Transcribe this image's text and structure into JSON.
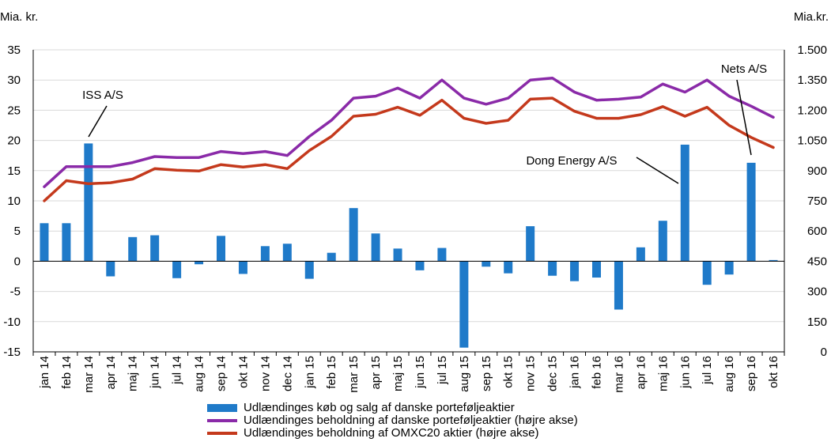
{
  "chart_data": {
    "type": "bar+line",
    "left_unit": "Mia. kr.",
    "right_unit": "Mia.kr.",
    "categories": [
      "jan 14",
      "feb 14",
      "mar 14",
      "apr 14",
      "maj 14",
      "jun 14",
      "jul 14",
      "aug 14",
      "sep 14",
      "okt 14",
      "nov 14",
      "dec 14",
      "jan 15",
      "feb 15",
      "mar 15",
      "apr 15",
      "maj 15",
      "jun 15",
      "jul 15",
      "aug 15",
      "sep 15",
      "okt 15",
      "nov 15",
      "dec 15",
      "jan 16",
      "feb 16",
      "mar 16",
      "apr 16",
      "maj 16",
      "jun 16",
      "jul 16",
      "aug 16",
      "sep 16",
      "okt 16"
    ],
    "left_axis": {
      "ylim": [
        -15,
        35
      ],
      "ticks": [
        -15,
        -10,
        -5,
        0,
        5,
        10,
        15,
        20,
        25,
        30,
        35
      ],
      "tick_labels": [
        "-15",
        "-10",
        "-5",
        "0",
        "5",
        "10",
        "15",
        "20",
        "25",
        "30",
        "35"
      ]
    },
    "right_axis": {
      "ylim": [
        0,
        1500
      ],
      "ticks": [
        0,
        150,
        300,
        450,
        600,
        750,
        900,
        1050,
        1200,
        1350,
        1500
      ],
      "tick_labels": [
        "0",
        "150",
        "300",
        "450",
        "600",
        "750",
        "900",
        "1.050",
        "1.200",
        "1.350",
        "1.500"
      ]
    },
    "series": [
      {
        "name": "Udlændinges køb og salg af danske porteføljeaktier",
        "kind": "bar",
        "axis": "left",
        "color": "#1f7ac9",
        "values": [
          6.3,
          6.3,
          19.5,
          -2.5,
          4.0,
          4.3,
          -2.8,
          -0.5,
          4.2,
          -2.1,
          2.5,
          2.9,
          -2.9,
          1.4,
          8.8,
          4.6,
          2.1,
          -1.5,
          2.2,
          -14.3,
          -0.9,
          -2.0,
          5.8,
          -2.4,
          -3.3,
          -2.7,
          -8.0,
          2.3,
          6.7,
          19.3,
          -3.9,
          -2.2,
          16.3,
          0.2
        ]
      },
      {
        "name": "Udlændinges beholdning af danske porteføljeaktier (højre akse)",
        "kind": "line",
        "axis": "right",
        "color": "#8a2aa8",
        "values": [
          820,
          920,
          920,
          920,
          940,
          970,
          965,
          965,
          995,
          985,
          995,
          975,
          1070,
          1150,
          1260,
          1270,
          1310,
          1260,
          1350,
          1260,
          1230,
          1260,
          1350,
          1360,
          1290,
          1250,
          1255,
          1265,
          1330,
          1290,
          1350,
          1270,
          1220,
          1165
        ]
      },
      {
        "name": "Udlændinges beholdning af OMXC20 aktier (højre akse)",
        "kind": "line",
        "axis": "right",
        "color": "#c4391c",
        "values": [
          750,
          850,
          835,
          840,
          858,
          910,
          902,
          898,
          930,
          918,
          930,
          910,
          1000,
          1070,
          1170,
          1180,
          1215,
          1175,
          1250,
          1160,
          1135,
          1150,
          1255,
          1260,
          1195,
          1160,
          1160,
          1178,
          1218,
          1170,
          1215,
          1125,
          1065,
          1015
        ]
      }
    ],
    "annotations": [
      {
        "text": "ISS A/S",
        "category": "mar 14"
      },
      {
        "text": "Dong Energy A/S",
        "category": "jun 16"
      },
      {
        "text": "Nets A/S",
        "category": "sep 16"
      }
    ]
  }
}
